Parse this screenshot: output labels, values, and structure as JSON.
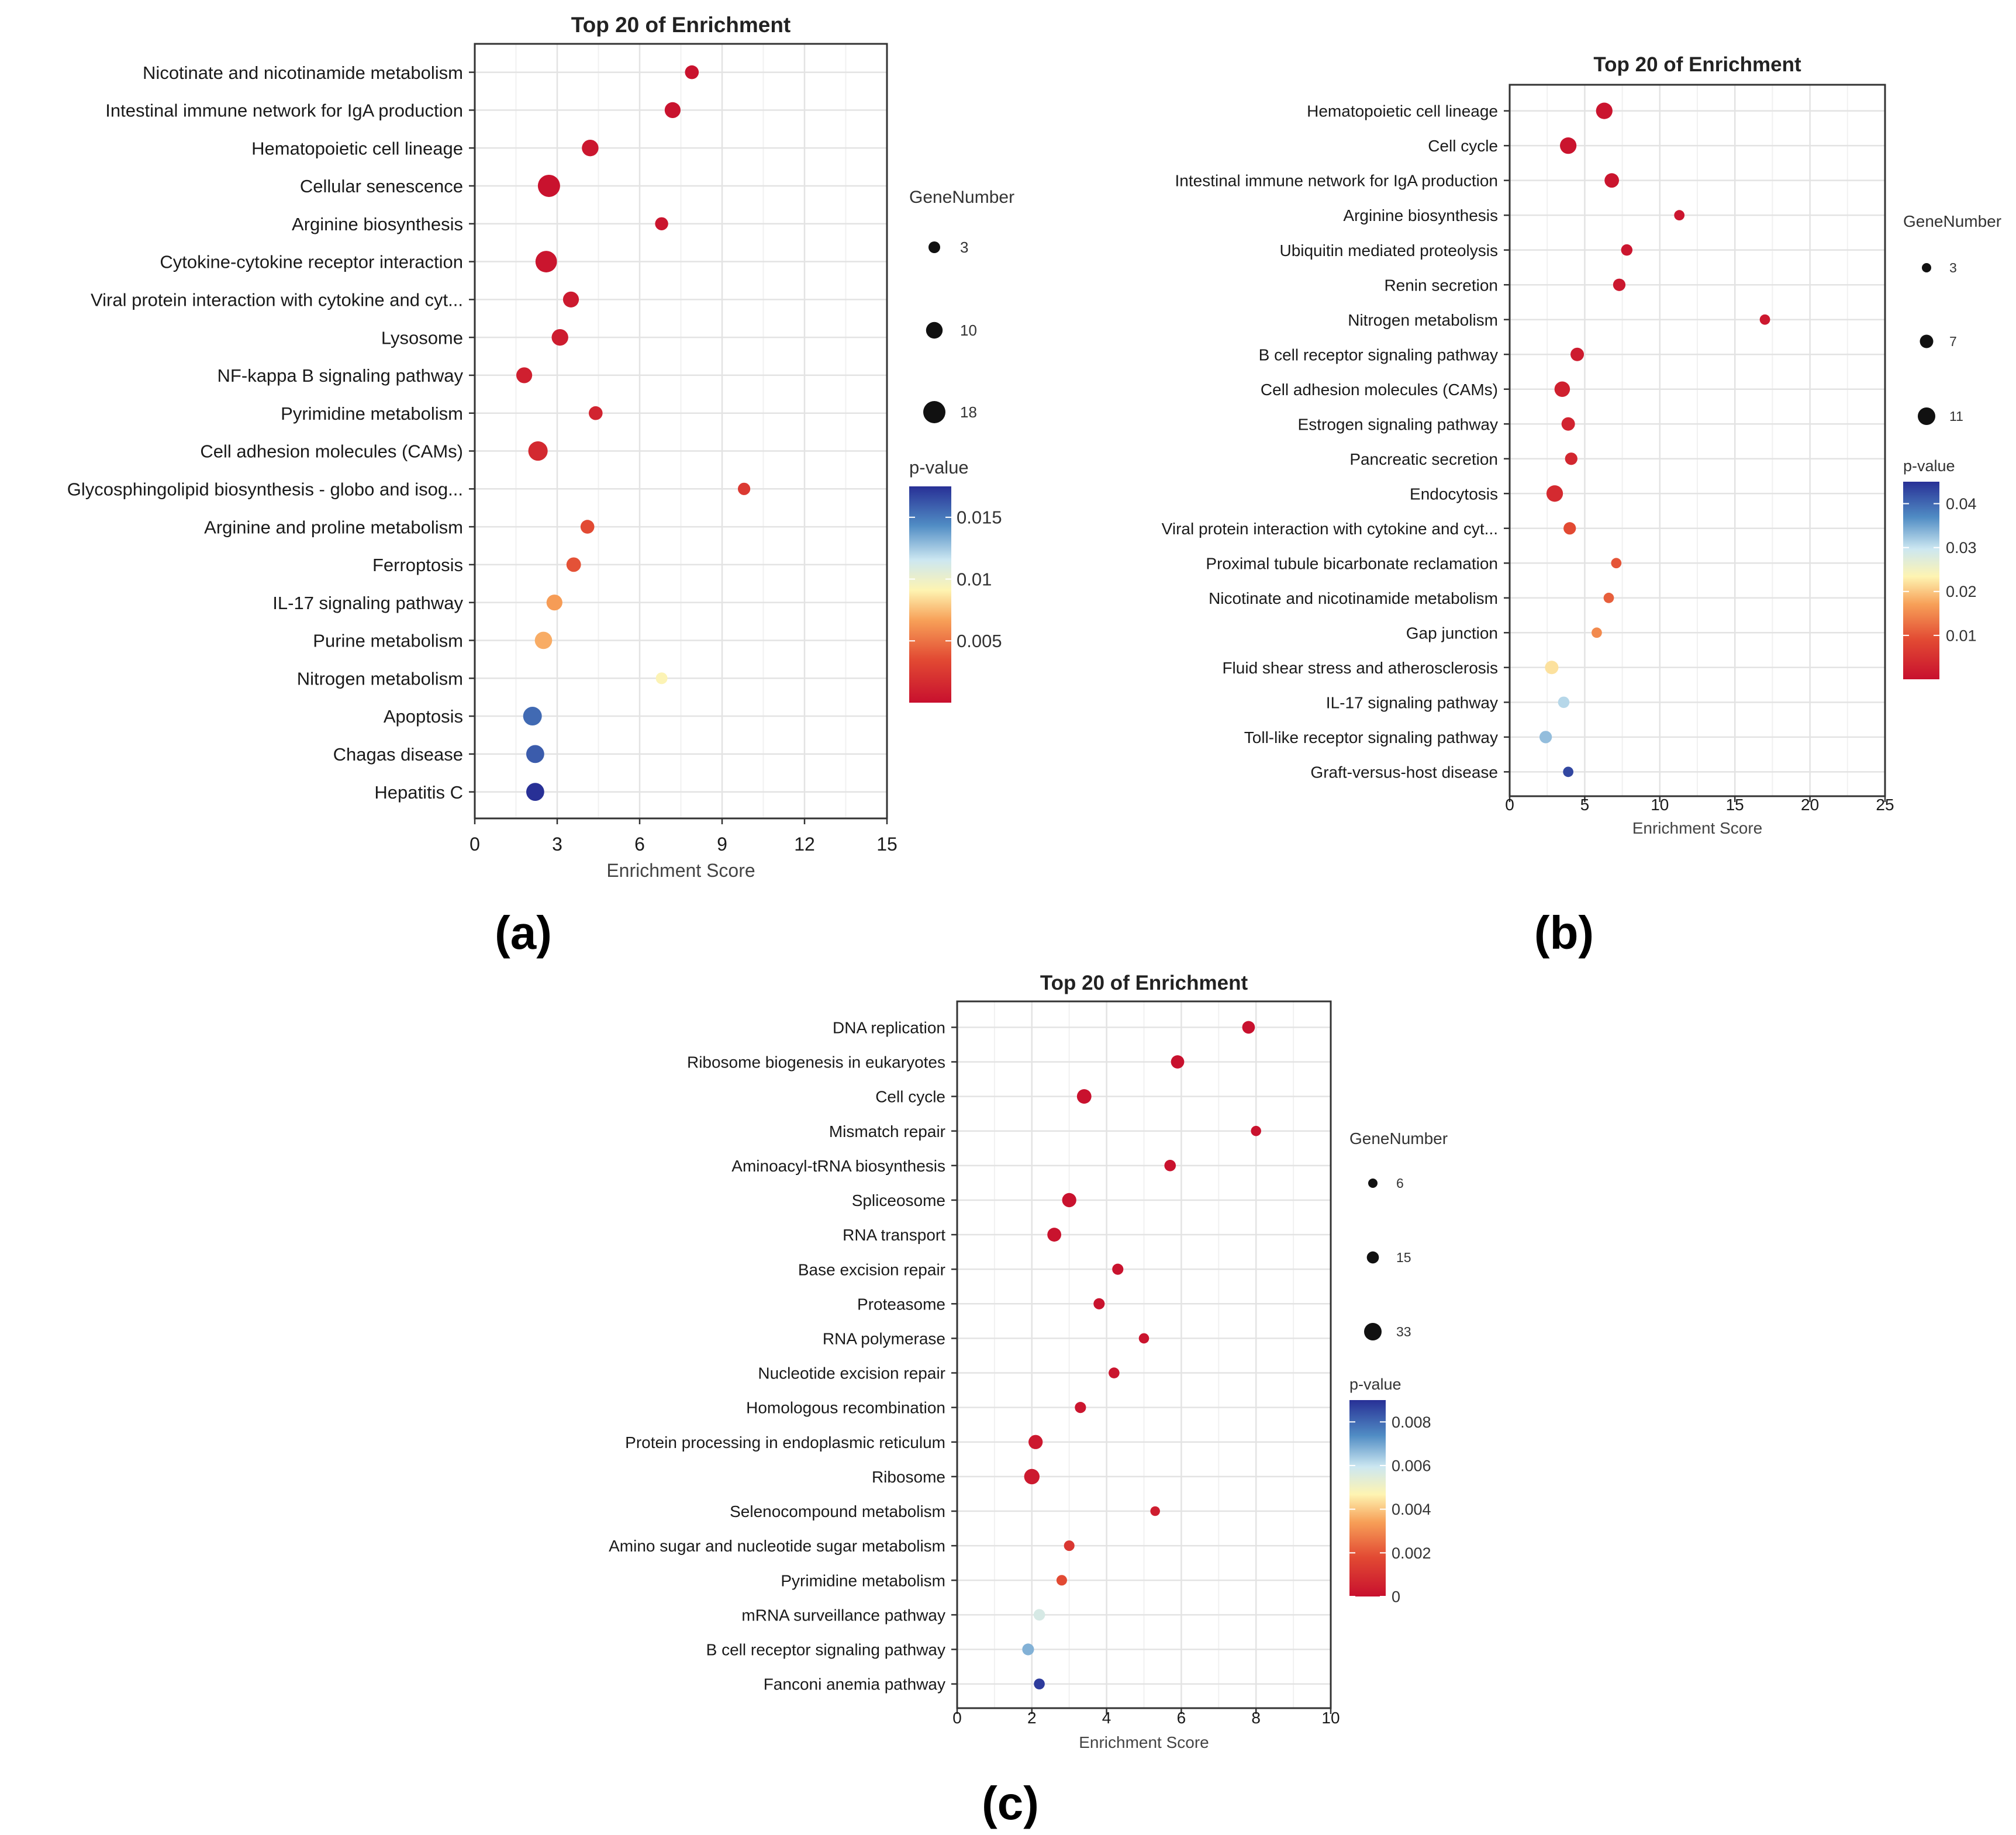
{
  "figure": {
    "panel_labels": [
      "(a)",
      "(b)",
      "(c)"
    ]
  },
  "chart_data": [
    {
      "type": "scatter",
      "panel": "(a)",
      "title": "Top 20 of  Enrichment",
      "xlabel": "Enrichment Score",
      "ylabel": "",
      "xlim": [
        0,
        15
      ],
      "xticks": [
        0,
        3,
        6,
        9,
        12,
        15
      ],
      "grid": true,
      "categories": [
        "Nicotinate and nicotinamide metabolism",
        "Intestinal immune network for IgA production",
        "Hematopoietic cell lineage",
        "Cellular senescence",
        "Arginine biosynthesis",
        "Cytokine-cytokine receptor interaction",
        "Viral protein interaction with cytokine and cyt...",
        "Lysosome",
        "NF-kappa B signaling pathway",
        "Pyrimidine metabolism",
        "Cell adhesion molecules (CAMs)",
        "Glycosphingolipid biosynthesis - globo and isog...",
        "Arginine and proline metabolism",
        "Ferroptosis",
        "IL-17 signaling pathway",
        "Purine metabolism",
        "Nitrogen metabolism",
        "Apoptosis",
        "Chagas disease",
        "Hepatitis C"
      ],
      "enrichment_score": [
        7.9,
        7.2,
        4.2,
        2.7,
        6.8,
        2.6,
        3.5,
        3.1,
        1.8,
        4.4,
        2.3,
        9.8,
        4.1,
        3.6,
        2.9,
        2.5,
        6.8,
        2.1,
        2.2,
        2.2
      ],
      "gene_number": [
        6,
        9,
        10,
        18,
        5,
        17,
        9,
        10,
        9,
        6,
        14,
        4,
        6,
        7,
        9,
        11,
        3,
        13,
        12,
        12
      ],
      "p_value": [
        0.0001,
        0.0002,
        0.0004,
        0.0001,
        0.0003,
        0.0003,
        0.0006,
        0.0007,
        0.0009,
        0.0012,
        0.0015,
        0.0025,
        0.0035,
        0.0038,
        0.0065,
        0.007,
        0.0092,
        0.0155,
        0.016,
        0.0175
      ],
      "legend": {
        "size_title": "GeneNumber",
        "size_values": [
          3,
          10,
          18
        ],
        "color_title": "p-value",
        "color_ticks": [
          0.005,
          0.01,
          0.015
        ],
        "color_tick_labels": [
          "0.005",
          "0.01",
          "0.015"
        ],
        "color_range": [
          0,
          0.0175
        ],
        "placement": "right"
      }
    },
    {
      "type": "scatter",
      "panel": "(b)",
      "title": "Top 20 of  Enrichment",
      "xlabel": "Enrichment Score",
      "ylabel": "",
      "xlim": [
        0,
        25
      ],
      "xticks": [
        0,
        5,
        10,
        15,
        20,
        25
      ],
      "grid": true,
      "categories": [
        "Hematopoietic cell lineage",
        "Cell cycle",
        "Intestinal immune network for IgA production",
        "Arginine biosynthesis",
        "Ubiquitin mediated proteolysis",
        "Renin secretion",
        "Nitrogen metabolism",
        "B cell receptor signaling pathway",
        "Cell adhesion molecules (CAMs)",
        "Estrogen signaling pathway",
        "Pancreatic secretion",
        "Endocytosis",
        "Viral protein interaction with cytokine and cyt...",
        "Proximal tubule bicarbonate reclamation",
        "Nicotinate and nicotinamide metabolism",
        "Gap junction",
        "Fluid shear stress and atherosclerosis",
        "IL-17 signaling pathway",
        "Toll-like receptor signaling pathway",
        "Graft-versus-host disease"
      ],
      "enrichment_score": [
        6.3,
        3.9,
        6.8,
        11.3,
        7.8,
        7.3,
        17.0,
        4.5,
        3.5,
        3.9,
        4.1,
        3.0,
        4.0,
        7.1,
        6.6,
        5.8,
        2.8,
        3.6,
        2.4,
        3.9
      ],
      "gene_number": [
        10,
        10,
        8,
        4,
        5,
        6,
        4,
        7,
        9,
        7,
        6,
        10,
        6,
        4,
        4,
        4,
        7,
        5,
        6,
        4
      ],
      "p_value": [
        0.0006,
        0.0006,
        0.0008,
        0.0009,
        0.001,
        0.0012,
        0.0013,
        0.0018,
        0.0025,
        0.003,
        0.0035,
        0.004,
        0.009,
        0.01,
        0.011,
        0.015,
        0.022,
        0.031,
        0.033,
        0.043
      ],
      "legend": {
        "size_title": "GeneNumber",
        "size_values": [
          3,
          7,
          11
        ],
        "color_title": "p-value",
        "color_ticks": [
          0.01,
          0.02,
          0.03,
          0.04
        ],
        "color_tick_labels": [
          "0.01",
          "0.02",
          "0.03",
          "0.04"
        ],
        "color_range": [
          0,
          0.045
        ],
        "placement": "right"
      }
    },
    {
      "type": "scatter",
      "panel": "(c)",
      "title": "Top 20 of  Enrichment",
      "xlabel": "Enrichment Score",
      "ylabel": "",
      "xlim": [
        0,
        10
      ],
      "xticks": [
        0,
        2,
        4,
        6,
        8,
        10
      ],
      "grid": true,
      "categories": [
        "DNA replication",
        "Ribosome biogenesis in eukaryotes",
        "Cell cycle",
        "Mismatch repair",
        "Aminoacyl-tRNA biosynthesis",
        "Spliceosome",
        "RNA transport",
        "Base excision repair",
        "Proteasome",
        "RNA polymerase",
        "Nucleotide excision repair",
        "Homologous recombination",
        "Protein processing in endoplasmic reticulum",
        "Ribosome",
        "Selenocompound metabolism",
        "Amino sugar and nucleotide sugar metabolism",
        "Pyrimidine metabolism",
        "mRNA surveillance pathway",
        "B cell receptor signaling pathway",
        "Fanconi anemia pathway"
      ],
      "enrichment_score": [
        7.8,
        5.9,
        3.4,
        8.0,
        5.7,
        3.0,
        2.6,
        4.3,
        3.8,
        5.0,
        4.2,
        3.3,
        2.1,
        2.0,
        5.3,
        3.0,
        2.8,
        2.2,
        1.9,
        2.2
      ],
      "gene_number": [
        17,
        19,
        23,
        9,
        13,
        22,
        21,
        12,
        12,
        9,
        11,
        12,
        22,
        26,
        7,
        10,
        10,
        13,
        14,
        11
      ],
      "p_value": [
        2e-05,
        3e-05,
        4e-05,
        5e-05,
        6e-05,
        7e-05,
        8e-05,
        9e-05,
        0.0001,
        0.00012,
        0.00015,
        0.0002,
        0.00025,
        0.0003,
        0.0004,
        0.0012,
        0.0018,
        0.0057,
        0.0068,
        0.0088
      ],
      "legend": {
        "size_title": "GeneNumber",
        "size_values": [
          6,
          15,
          33
        ],
        "color_title": "p-value",
        "color_ticks": [
          0,
          0.002,
          0.004,
          0.006,
          0.008
        ],
        "color_tick_labels": [
          "0",
          "0.002",
          "0.004",
          "0.006",
          "0.008"
        ],
        "color_range": [
          0,
          0.009
        ],
        "placement": "right"
      }
    }
  ]
}
